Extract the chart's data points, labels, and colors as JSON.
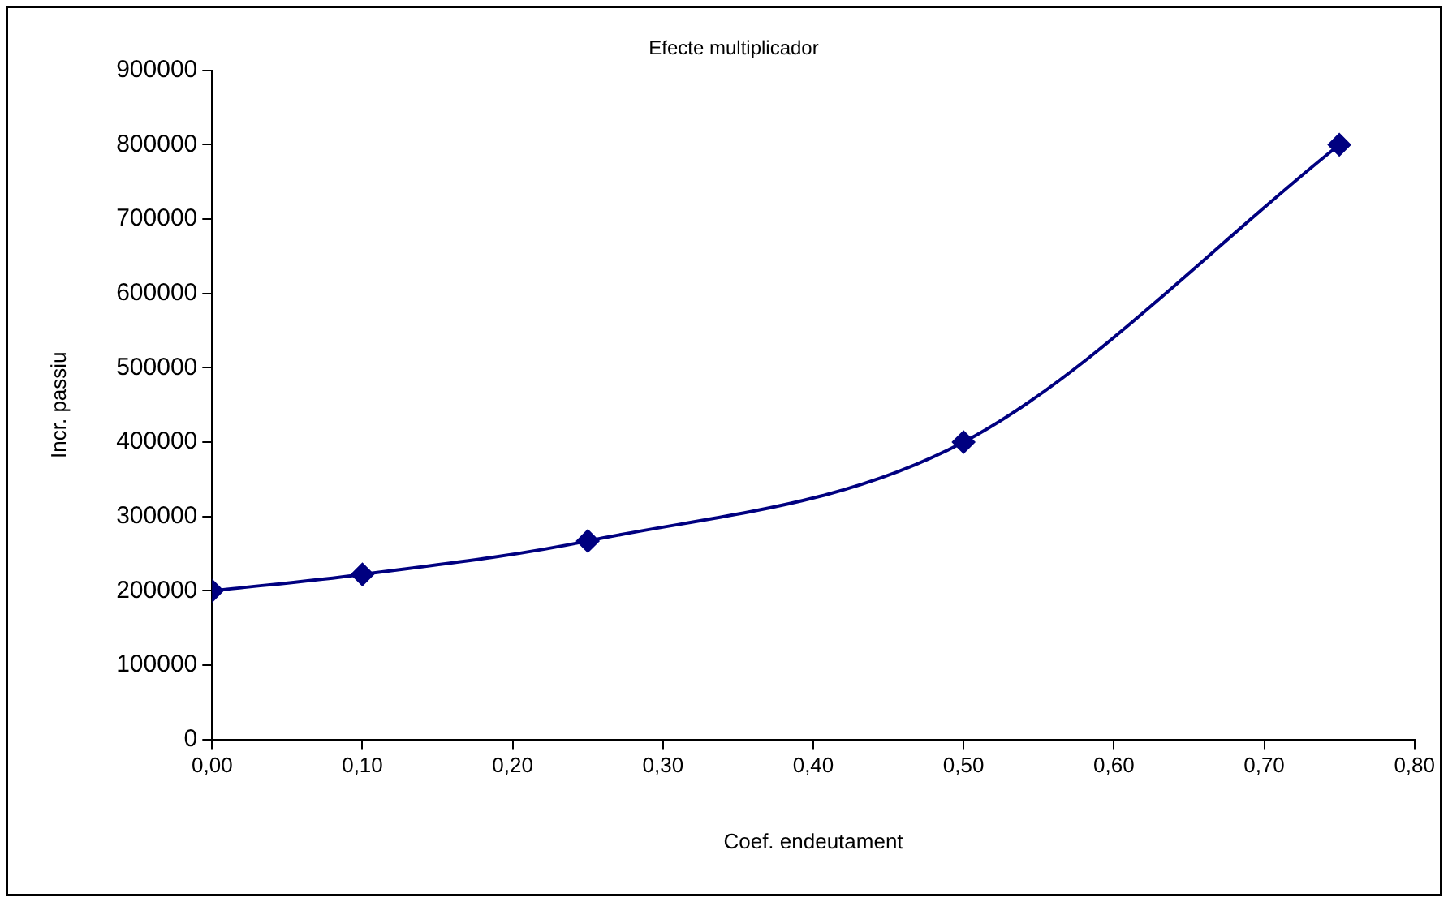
{
  "chart_data": {
    "type": "line",
    "title": "Efecte multiplicador",
    "xlabel": "Coef. endeutament",
    "ylabel": "Incr. passiu",
    "x": [
      0,
      0.1,
      0.25,
      0.5,
      0.75
    ],
    "series": [
      {
        "color": "#000080",
        "values": [
          200000,
          222000,
          267000,
          400000,
          800000
        ]
      }
    ],
    "xlim": [
      0,
      0.8
    ],
    "xticks": [
      {
        "value": 0,
        "label": "0,00"
      },
      {
        "value": 0.1,
        "label": "0,10"
      },
      {
        "value": 0.2,
        "label": "0,20"
      },
      {
        "value": 0.3,
        "label": "0,30"
      },
      {
        "value": 0.4,
        "label": "0,40"
      },
      {
        "value": 0.5,
        "label": "0,50"
      },
      {
        "value": 0.6,
        "label": "0,60"
      },
      {
        "value": 0.7,
        "label": "0,70"
      },
      {
        "value": 0.8,
        "label": "0,80"
      }
    ],
    "ylim": [
      0,
      900000
    ],
    "yticks": [
      0,
      100000,
      200000,
      300000,
      400000,
      500000,
      600000,
      700000,
      800000,
      900000
    ],
    "grid": false,
    "legend": false,
    "marker": "diamond",
    "line_style": "solid"
  }
}
